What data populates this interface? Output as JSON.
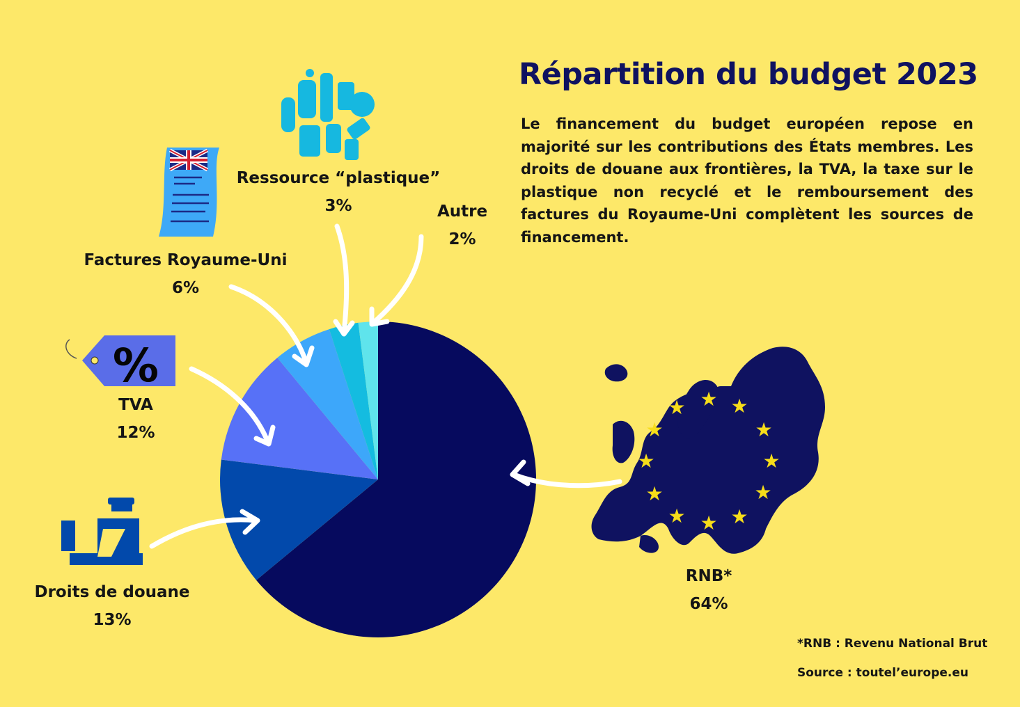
{
  "title": "Répartition du budget 2023",
  "intro": "Le financement du budget européen repose en majorité sur les contributions des États membres. Les droits de douane aux frontières, la TVA, la taxe sur le plastique non recyclé et le remboursement des factures du Royaume-Uni complètent les sources de financement.",
  "chart_data": {
    "type": "pie",
    "title": "Répartition du budget 2023",
    "slices": [
      {
        "label": "RNB*",
        "value": 64,
        "display": "64%",
        "color": "#060a5e"
      },
      {
        "label": "Droits de douane",
        "value": 13,
        "display": "13%",
        "color": "#0249ab"
      },
      {
        "label": "TVA",
        "value": 12,
        "display": "12%",
        "color": "#5771f7"
      },
      {
        "label": "Factures Royaume-Uni",
        "value": 6,
        "display": "6%",
        "color": "#3da7fa"
      },
      {
        "label": "Ressource “plastique”",
        "value": 3,
        "display": "3%",
        "color": "#14bce0"
      },
      {
        "label": "Autre",
        "value": 2,
        "display": "2%",
        "color": "#5fe4ec"
      }
    ]
  },
  "footnote": "*RNB : Revenu National Brut",
  "source": "Source :  toutel’europe.eu",
  "icons": [
    "plastic-waste-icon",
    "uk-invoice-icon",
    "percent-tag-icon",
    "customs-officer-icon",
    "europe-map-icon",
    "eu-star-icon",
    "arrow-icon"
  ]
}
